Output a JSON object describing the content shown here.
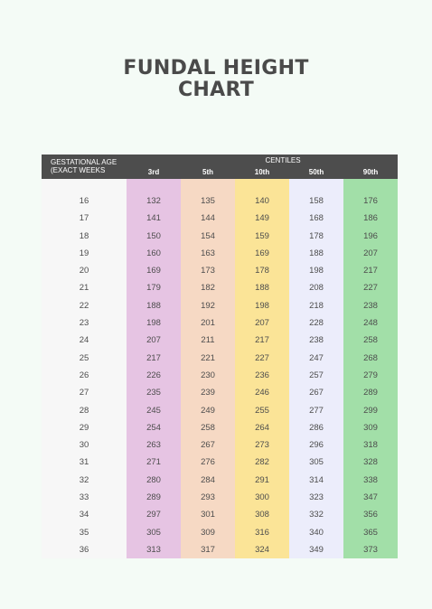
{
  "title_line1": "FUNDAL HEIGHT",
  "title_line2": "CHART",
  "header": {
    "ga_line1": "GESTATIONAL AGE",
    "ga_line2": "(EXACT WEEKS",
    "centiles": "CENTILES",
    "columns": [
      "3rd",
      "5th",
      "10th",
      "50th",
      "90th"
    ]
  },
  "colors": {
    "header_bg": "#4d4d4d",
    "col_3rd": "#e6c4e3",
    "col_5th": "#f6d9c4",
    "col_10th": "#fbe497",
    "col_50th": "#ecedfb",
    "col_90th": "#a2dfa8"
  },
  "chart_data": {
    "type": "table",
    "title": "FUNDAL HEIGHT CHART",
    "columns": [
      "GESTATIONAL AGE (EXACT WEEKS",
      "3rd",
      "5th",
      "10th",
      "50th",
      "90th"
    ],
    "weeks": [
      "16",
      "17",
      "18",
      "19",
      "20",
      "21",
      "22",
      "23",
      "24",
      "25",
      "26",
      "27",
      "28",
      "29",
      "30",
      "31",
      "32",
      "33",
      "34",
      "35",
      "36"
    ],
    "c3rd": [
      "132",
      "141",
      "150",
      "160",
      "169",
      "179",
      "188",
      "198",
      "207",
      "217",
      "226",
      "235",
      "245",
      "254",
      "263",
      "271",
      "280",
      "289",
      "297",
      "305",
      "313"
    ],
    "c5th": [
      "135",
      "144",
      "154",
      "163",
      "173",
      "182",
      "192",
      "201",
      "211",
      "221",
      "230",
      "239",
      "249",
      "258",
      "267",
      "276",
      "284",
      "293",
      "301",
      "309",
      "317"
    ],
    "c10th": [
      "140",
      "149",
      "159",
      "169",
      "178",
      "188",
      "198",
      "207",
      "217",
      "227",
      "236",
      "246",
      "255",
      "264",
      "273",
      "282",
      "291",
      "300",
      "308",
      "316",
      "324"
    ],
    "c50th": [
      "158",
      "168",
      "178",
      "188",
      "198",
      "208",
      "218",
      "228",
      "238",
      "247",
      "257",
      "267",
      "277",
      "286",
      "296",
      "305",
      "314",
      "323",
      "332",
      "340",
      "349"
    ],
    "c90th": [
      "176",
      "186",
      "196",
      "207",
      "217",
      "227",
      "238",
      "248",
      "258",
      "268",
      "279",
      "289",
      "299",
      "309",
      "318",
      "328",
      "338",
      "347",
      "356",
      "365",
      "373"
    ]
  }
}
